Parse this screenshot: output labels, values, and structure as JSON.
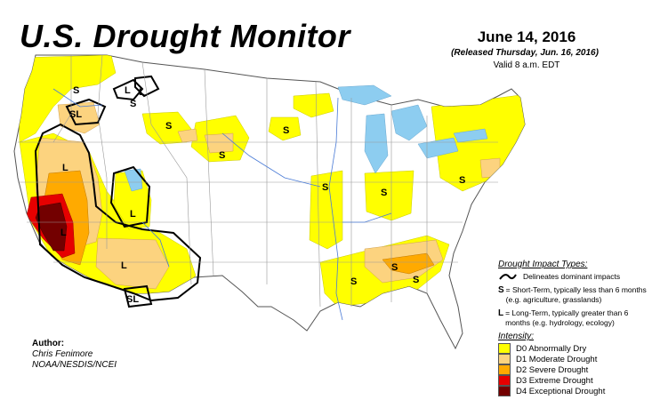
{
  "header": {
    "title": "U.S. Drought Monitor",
    "date": "June 14, 2016",
    "released": "(Released Thursday, Jun. 16, 2016)",
    "valid": "Valid 8 a.m. EDT"
  },
  "author": {
    "label": "Author:",
    "name": "Chris Fenimore",
    "org": "NOAA/NESDIS/NCEI"
  },
  "legend": {
    "impact_heading": "Drought Impact Types:",
    "delineates": "Delineates dominant impacts",
    "short_key": "S",
    "short_text": "= Short-Term, typically less than 6 months (e.g. agriculture, grasslands)",
    "long_key": "L",
    "long_text": "= Long-Term, typically greater than 6 months (e.g. hydrology, ecology)",
    "intensity_heading": "Intensity:",
    "intensity": [
      {
        "label": "D0 Abnormally Dry",
        "color": "#ffff00"
      },
      {
        "label": "D1 Moderate Drought",
        "color": "#fcd37f"
      },
      {
        "label": "D2 Severe Drought",
        "color": "#ffaa00"
      },
      {
        "label": "D3 Extreme Drought",
        "color": "#e60000"
      },
      {
        "label": "D4 Exceptional Drought",
        "color": "#730000"
      }
    ]
  },
  "map_labels": {
    "s": "S",
    "l": "L",
    "sl": "SL"
  },
  "colors": {
    "d0": "#ffff00",
    "d1": "#fcd37f",
    "d2": "#ffaa00",
    "d3": "#e60000",
    "d4": "#730000",
    "water": "#8dcdf0",
    "border": "#999999"
  }
}
